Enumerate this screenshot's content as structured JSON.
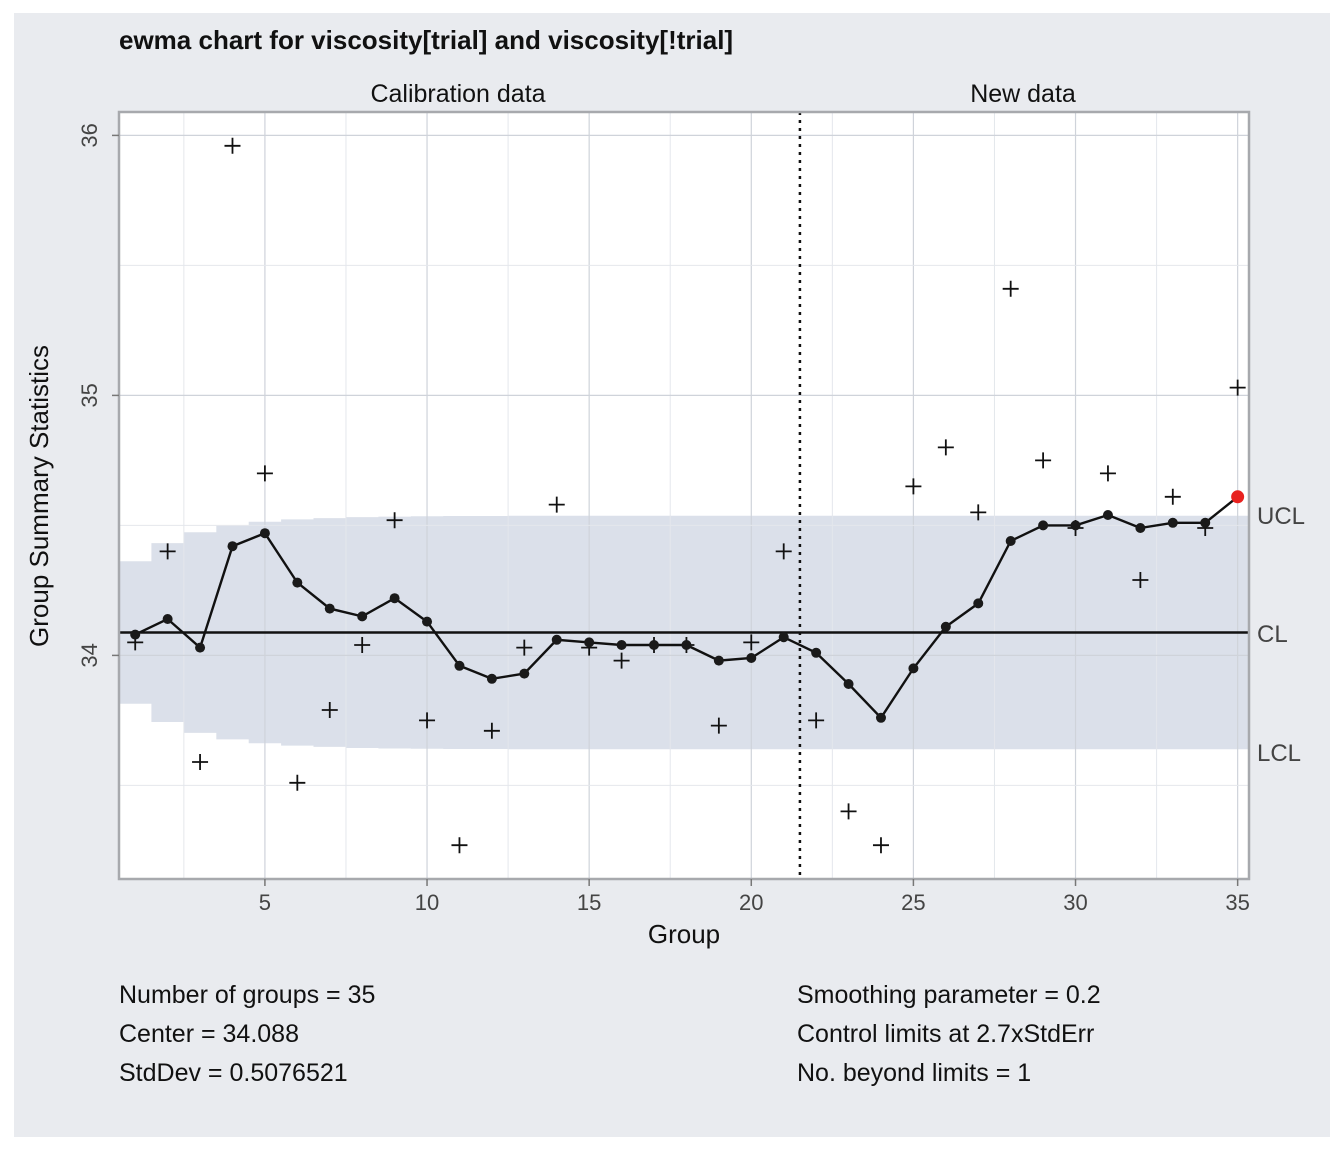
{
  "chart_data": {
    "type": "line",
    "title": "ewma chart for viscosity[trial] and viscosity[!trial]",
    "xlabel": "Group",
    "ylabel": "Group Summary Statistics",
    "xlim": [
      0.5,
      35.35
    ],
    "ylim": [
      33.14,
      36.09
    ],
    "x_ticks": [
      5,
      10,
      15,
      20,
      25,
      30,
      35
    ],
    "y_ticks": [
      34,
      35,
      36
    ],
    "grid": true,
    "sections": [
      {
        "label": "Calibration data",
        "x_range": [
          0.5,
          21.5
        ]
      },
      {
        "label": "New data",
        "x_range": [
          21.5,
          35.35
        ]
      }
    ],
    "divider_x": 21.5,
    "center": 34.088,
    "center_label": "CL",
    "ucl_label": "UCL",
    "lcl_label": "LCL",
    "limits": {
      "ucl": [
        34.362,
        34.432,
        34.474,
        34.499,
        34.514,
        34.523,
        34.528,
        34.532,
        34.534,
        34.535,
        34.536,
        34.536,
        34.537,
        34.537,
        34.537,
        34.537,
        34.537,
        34.537,
        34.537,
        34.537,
        34.537,
        34.537,
        34.537,
        34.537,
        34.537,
        34.537,
        34.537,
        34.537,
        34.537,
        34.537,
        34.537,
        34.537,
        34.537,
        34.537,
        34.537
      ],
      "lcl": [
        33.814,
        33.744,
        33.702,
        33.677,
        33.662,
        33.653,
        33.648,
        33.644,
        33.642,
        33.641,
        33.64,
        33.64,
        33.639,
        33.639,
        33.639,
        33.639,
        33.639,
        33.639,
        33.639,
        33.639,
        33.639,
        33.639,
        33.639,
        33.639,
        33.639,
        33.639,
        33.639,
        33.639,
        33.639,
        33.639,
        33.639,
        33.639,
        33.639,
        33.639,
        33.639
      ]
    },
    "series": [
      {
        "name": "statistics",
        "marker": "plus",
        "values": [
          34.05,
          34.4,
          33.59,
          35.96,
          34.7,
          33.51,
          33.79,
          34.04,
          34.52,
          33.75,
          33.27,
          33.71,
          34.03,
          34.58,
          34.03,
          33.98,
          34.04,
          34.04,
          33.73,
          34.05,
          34.4,
          33.75,
          33.4,
          33.27,
          34.65,
          34.8,
          34.55,
          35.41,
          34.75,
          34.49,
          34.7,
          34.29,
          34.61,
          34.49,
          35.03
        ]
      },
      {
        "name": "ewma",
        "marker": "dot",
        "values": [
          34.08,
          34.14,
          34.03,
          34.42,
          34.47,
          34.28,
          34.18,
          34.15,
          34.22,
          34.13,
          33.96,
          33.91,
          33.93,
          34.06,
          34.05,
          34.04,
          34.04,
          34.04,
          33.98,
          33.99,
          34.07,
          34.01,
          33.89,
          33.76,
          33.95,
          34.11,
          34.2,
          34.44,
          34.5,
          34.5,
          34.54,
          34.49,
          34.51,
          34.51,
          34.61
        ]
      }
    ],
    "violation_x": [
      35
    ],
    "violation_color": "#e8221f",
    "band_color": "#dbe0ea",
    "panel_color": "#e9ebef"
  },
  "stats_left": [
    "Number of groups = 35",
    "Center = 34.088",
    "StdDev = 0.5076521"
  ],
  "stats_right": [
    "Smoothing parameter = 0.2",
    "Control limits at 2.7xStdErr",
    "No. beyond limits = 1"
  ]
}
